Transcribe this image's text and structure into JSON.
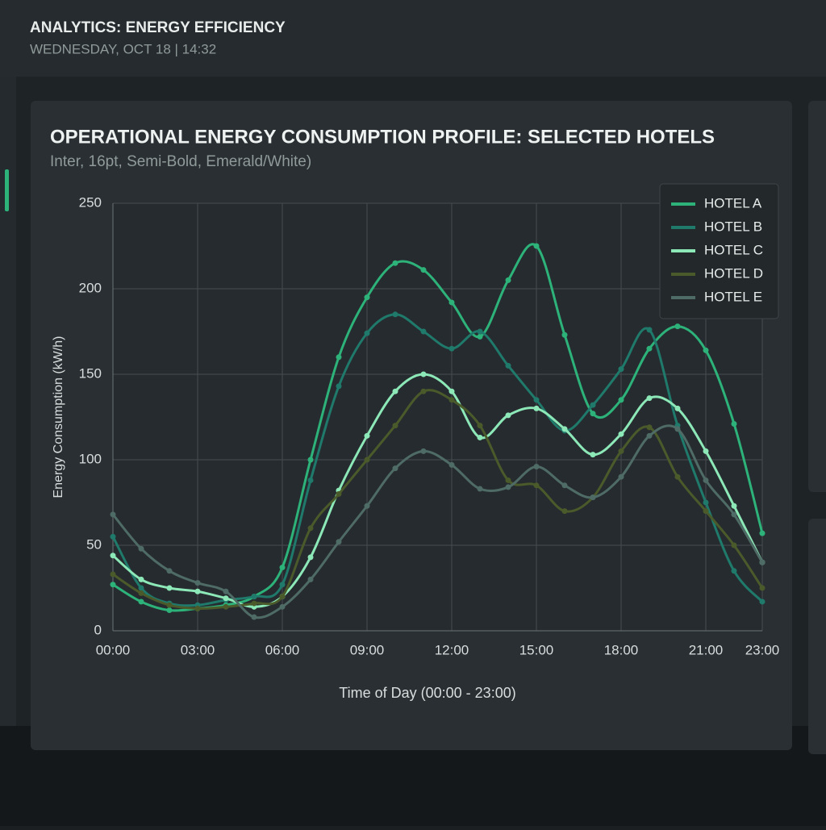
{
  "header": {
    "title": "ANALYTICS: ENERGY EFFICIENCY",
    "subtitle": "WEDNESDAY, OCT 18 | 14:32"
  },
  "chart_data": {
    "type": "line",
    "title": "OPERATIONAL ENERGY CONSUMPTION PROFILE: SELECTED HOTELS",
    "subtitle": "Inter, 16pt, Semi-Bold, Emerald/White)",
    "x_label": "Time of Day (00:00 - 23:00)",
    "y_label": "Energy Consumption (kW/h)",
    "x": [
      0,
      1,
      2,
      3,
      4,
      5,
      6,
      7,
      8,
      9,
      10,
      11,
      12,
      13,
      14,
      15,
      16,
      17,
      18,
      19,
      20,
      21,
      22,
      23
    ],
    "xlim": [
      0,
      23
    ],
    "xticks": [
      {
        "value": 0,
        "label": "00:00"
      },
      {
        "value": 3,
        "label": "03:00"
      },
      {
        "value": 6,
        "label": "06:00"
      },
      {
        "value": 9,
        "label": "09:00"
      },
      {
        "value": 12,
        "label": "12:00"
      },
      {
        "value": 15,
        "label": "15:00"
      },
      {
        "value": 18,
        "label": "18:00"
      },
      {
        "value": 21,
        "label": "21:00"
      },
      {
        "value": 23,
        "label": "23:00"
      }
    ],
    "ylim": [
      0,
      250
    ],
    "yticks": [
      0,
      50,
      100,
      150,
      200,
      250
    ],
    "grid": true,
    "legend": "upper right",
    "series": [
      {
        "name": "HOTEL A",
        "color": "#2db37a",
        "values": [
          27,
          17,
          12,
          13,
          15,
          20,
          37,
          100,
          160,
          195,
          215,
          211,
          192,
          172,
          205,
          225,
          173,
          127,
          135,
          165,
          178,
          164,
          121,
          57
        ]
      },
      {
        "name": "HOTEL B",
        "color": "#1f7a6b",
        "values": [
          55,
          25,
          16,
          15,
          18,
          20,
          27,
          88,
          143,
          174,
          185,
          175,
          165,
          175,
          155,
          135,
          117,
          132,
          153,
          176,
          120,
          75,
          35,
          17
        ]
      },
      {
        "name": "HOTEL C",
        "color": "#8de8b8",
        "values": [
          44,
          30,
          25,
          23,
          19,
          14,
          20,
          43,
          82,
          114,
          140,
          150,
          140,
          113,
          126,
          130,
          118,
          103,
          115,
          136,
          130,
          105,
          73,
          40
        ]
      },
      {
        "name": "HOTEL D",
        "color": "#4b5a2a",
        "values": [
          33,
          22,
          15,
          13,
          14,
          16,
          20,
          60,
          80,
          100,
          120,
          140,
          135,
          120,
          88,
          85,
          70,
          78,
          105,
          119,
          90,
          70,
          50,
          25
        ]
      },
      {
        "name": "HOTEL E",
        "color": "#4f6b66",
        "values": [
          68,
          48,
          35,
          28,
          23,
          8,
          14,
          30,
          52,
          73,
          95,
          105,
          97,
          83,
          84,
          96,
          85,
          78,
          90,
          114,
          118,
          88,
          68,
          40
        ]
      }
    ]
  }
}
